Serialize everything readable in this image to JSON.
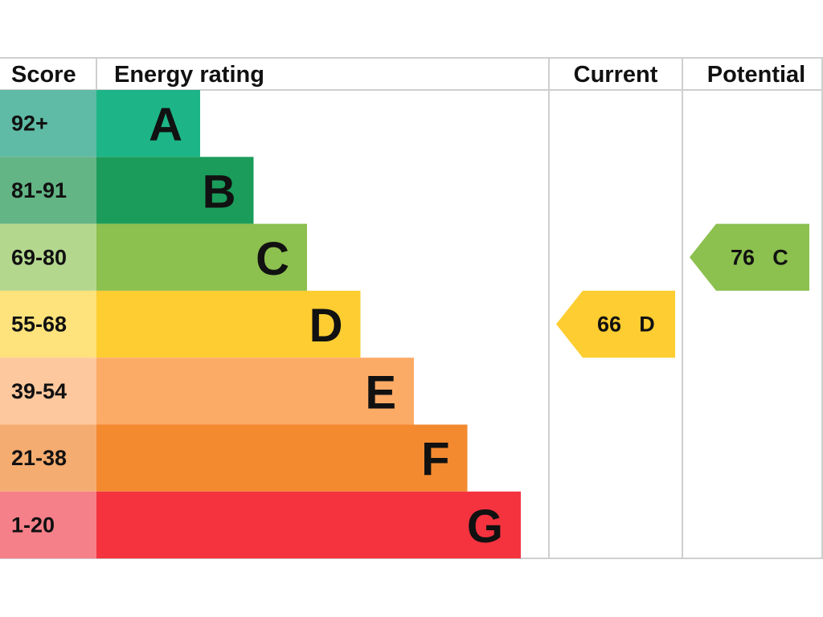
{
  "headers": {
    "score": "Score",
    "rating": "Energy rating",
    "current": "Current",
    "potential": "Potential"
  },
  "bands": [
    {
      "score": "92+",
      "letter": "A",
      "color": "#1db587",
      "score_color": "#5fbba5"
    },
    {
      "score": "81-91",
      "letter": "B",
      "color": "#1b9c5b",
      "score_color": "#63b585"
    },
    {
      "score": "69-80",
      "letter": "C",
      "color": "#8cc04f",
      "score_color": "#b4d78e"
    },
    {
      "score": "55-68",
      "letter": "D",
      "color": "#fdcd31",
      "score_color": "#fee27b"
    },
    {
      "score": "39-54",
      "letter": "E",
      "color": "#fcab66",
      "score_color": "#fdc89d"
    },
    {
      "score": "21-38",
      "letter": "F",
      "color": "#f38a30",
      "score_color": "#f5ac70"
    },
    {
      "score": "1-20",
      "letter": "G",
      "color": "#f4333f",
      "score_color": "#f6808a"
    }
  ],
  "current": {
    "value": 66,
    "letter": "D"
  },
  "potential": {
    "value": 76,
    "letter": "C"
  }
}
